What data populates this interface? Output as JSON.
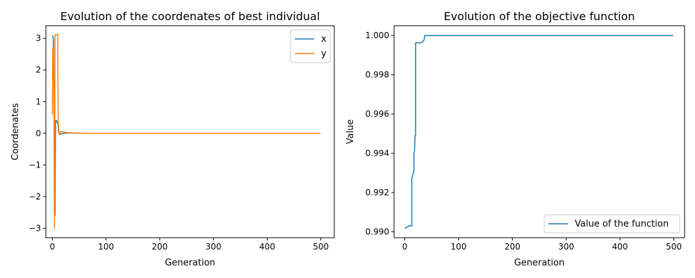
{
  "colors": {
    "x": "#1f77b4",
    "y": "#ff7f0e",
    "value": "#1f77b4",
    "axis": "#000000",
    "legend_border": "#cccccc"
  },
  "chart_data": [
    {
      "type": "line",
      "title": "Evolution of the coordenates of best individual",
      "xlabel": "Generation",
      "ylabel": "Coordenates",
      "xlim": [
        -12,
        525
      ],
      "ylim": [
        -3.3,
        3.4
      ],
      "xticks": [
        0,
        100,
        200,
        300,
        400,
        500
      ],
      "xtick_labels": [
        "0",
        "100",
        "200",
        "300",
        "400",
        "500"
      ],
      "yticks": [
        -3,
        -2,
        -1,
        0,
        1,
        2,
        3
      ],
      "ytick_labels": [
        "−3",
        "−2",
        "−1",
        "0",
        "1",
        "2",
        "3"
      ],
      "grid": false,
      "legend_position": "top-right",
      "series": [
        {
          "name": "x",
          "color": "#1f77b4",
          "points": [
            [
              0,
              3.08
            ],
            [
              1,
              3.08
            ],
            [
              2,
              2.95
            ],
            [
              3,
              1.8
            ],
            [
              4,
              1.1
            ],
            [
              5,
              -2.6
            ],
            [
              6,
              0.4
            ],
            [
              7,
              0.4
            ],
            [
              8,
              0.4
            ],
            [
              9,
              0.35
            ],
            [
              10,
              0.3
            ],
            [
              11,
              0.35
            ],
            [
              12,
              0.0
            ],
            [
              13,
              -0.02
            ],
            [
              14,
              -0.04
            ],
            [
              15,
              -0.03
            ],
            [
              17,
              -0.02
            ],
            [
              20,
              0.0
            ],
            [
              25,
              0.01
            ],
            [
              30,
              0.01
            ],
            [
              40,
              0.01
            ],
            [
              60,
              0.0
            ],
            [
              100,
              0.0
            ],
            [
              200,
              0.0
            ],
            [
              300,
              0.0
            ],
            [
              400,
              0.0
            ],
            [
              499,
              0.0
            ]
          ]
        },
        {
          "name": "y",
          "color": "#ff7f0e",
          "points": [
            [
              0,
              0.6
            ],
            [
              1,
              2.7
            ],
            [
              2,
              2.65
            ],
            [
              3,
              0.9
            ],
            [
              4,
              -3.0
            ],
            [
              5,
              3.12
            ],
            [
              6,
              3.12
            ],
            [
              7,
              3.12
            ],
            [
              8,
              3.12
            ],
            [
              9,
              3.12
            ],
            [
              10,
              3.12
            ],
            [
              11,
              0.05
            ],
            [
              12,
              0.03
            ],
            [
              13,
              -0.03
            ],
            [
              14,
              -0.05
            ],
            [
              15,
              0.05
            ],
            [
              18,
              0.05
            ],
            [
              20,
              0.04
            ],
            [
              25,
              0.03
            ],
            [
              30,
              0.02
            ],
            [
              40,
              0.01
            ],
            [
              60,
              0.0
            ],
            [
              100,
              0.0
            ],
            [
              200,
              0.0
            ],
            [
              300,
              0.0
            ],
            [
              400,
              0.0
            ],
            [
              499,
              0.0
            ]
          ]
        }
      ]
    },
    {
      "type": "line",
      "title": "Evolution of the objective function",
      "xlabel": "Generation",
      "ylabel": "Value",
      "xlim": [
        -20,
        520
      ],
      "ylim": [
        0.9897,
        1.0005
      ],
      "xticks": [
        0,
        100,
        200,
        300,
        400,
        500
      ],
      "xtick_labels": [
        "0",
        "100",
        "200",
        "300",
        "400",
        "500"
      ],
      "yticks": [
        0.99,
        0.992,
        0.994,
        0.996,
        0.998,
        1.0
      ],
      "ytick_labels": [
        "0.990",
        "0.992",
        "0.994",
        "0.996",
        "0.998",
        "1.000"
      ],
      "grid": false,
      "legend_position": "bottom-right",
      "series": [
        {
          "name": "Value of the function",
          "color": "#1f77b4",
          "points": [
            [
              0,
              0.99018
            ],
            [
              5,
              0.99025
            ],
            [
              8,
              0.9903
            ],
            [
              13,
              0.9903
            ],
            [
              13,
              0.99275
            ],
            [
              15,
              0.9929
            ],
            [
              16,
              0.99305
            ],
            [
              17,
              0.99305
            ],
            [
              17,
              0.994
            ],
            [
              18,
              0.9941
            ],
            [
              19,
              0.9949
            ],
            [
              20,
              0.99495
            ],
            [
              20,
              0.99963
            ],
            [
              22,
              0.99963
            ],
            [
              30,
              0.99963
            ],
            [
              34,
              0.9997
            ],
            [
              36,
              0.9998
            ],
            [
              37,
              1.0
            ],
            [
              100,
              1.0
            ],
            [
              200,
              1.0
            ],
            [
              300,
              1.0
            ],
            [
              400,
              1.0
            ],
            [
              499,
              1.0
            ]
          ]
        }
      ]
    }
  ]
}
